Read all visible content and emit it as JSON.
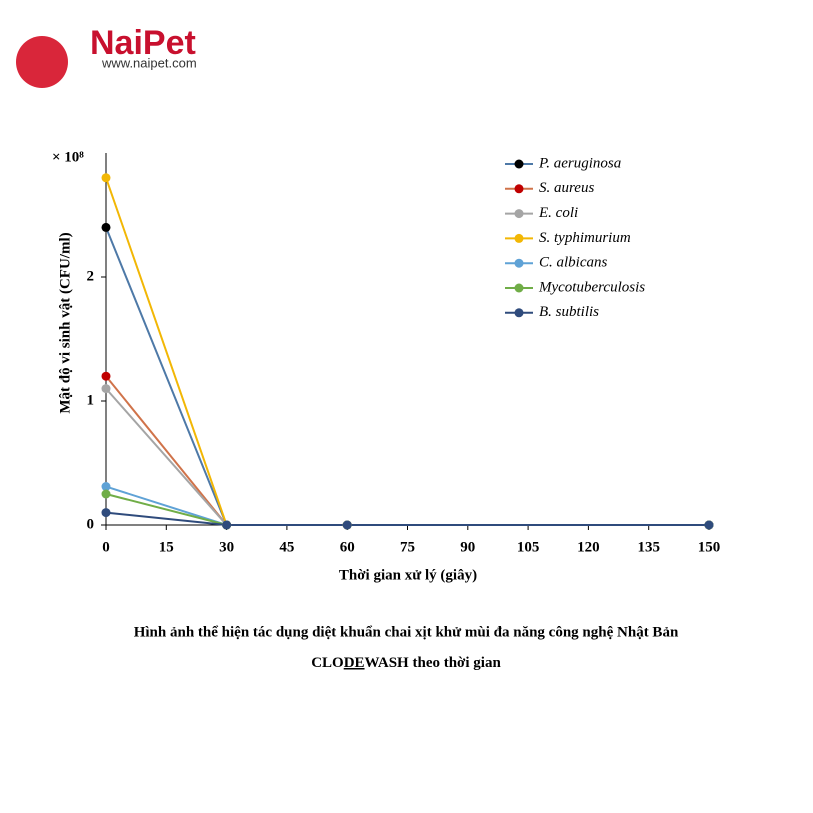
{
  "logo": {
    "name": "NaiPet",
    "url": "www.naipet.com"
  },
  "chart_data": {
    "type": "line",
    "y_multiplier": "× 10⁸",
    "y_label": "Mật độ vi sinh vật (CFU/ml)",
    "x_label": "Thời gian xử lý (giây)",
    "x": [
      0,
      30,
      60,
      150
    ],
    "xlim": [
      0,
      150
    ],
    "xticks": [
      0,
      15,
      30,
      45,
      60,
      75,
      90,
      105,
      120,
      135,
      150
    ],
    "ylim": [
      0,
      3
    ],
    "yticks": [
      0,
      1,
      2
    ],
    "legend": "top-right",
    "series": [
      {
        "name": "P. aeruginosa",
        "color": "#000000",
        "line_color": "#4e79a7",
        "values": [
          2.4,
          0,
          0,
          0
        ]
      },
      {
        "name": "S. aureus",
        "color": "#c00000",
        "line_color": "#d0734a",
        "values": [
          1.2,
          0,
          0,
          0
        ]
      },
      {
        "name": "E. coli",
        "color": "#a5a5a5",
        "line_color": "#a5a5a5",
        "values": [
          1.1,
          0,
          0,
          0
        ]
      },
      {
        "name": "S. typhimurium",
        "color": "#f2b705",
        "line_color": "#f2b705",
        "values": [
          2.8,
          0,
          0,
          0
        ]
      },
      {
        "name": "C. albicans",
        "color": "#5fa2d6",
        "line_color": "#5fa2d6",
        "values": [
          0.31,
          0,
          0,
          0
        ]
      },
      {
        "name": "Mycotuberculosis",
        "color": "#70ad47",
        "line_color": "#70ad47",
        "values": [
          0.25,
          0,
          0,
          0
        ]
      },
      {
        "name": "B. subtilis",
        "color": "#2f4b7c",
        "line_color": "#2f4b7c",
        "values": [
          0.1,
          0,
          0,
          0
        ]
      }
    ]
  },
  "caption": {
    "line1": "Hình ảnh thể hiện tác dụng diệt khuẩn chai xịt khử mùi đa năng công nghệ Nhật Bản",
    "line2": [
      "CLO",
      "DE",
      "WASH theo thời gian"
    ]
  }
}
